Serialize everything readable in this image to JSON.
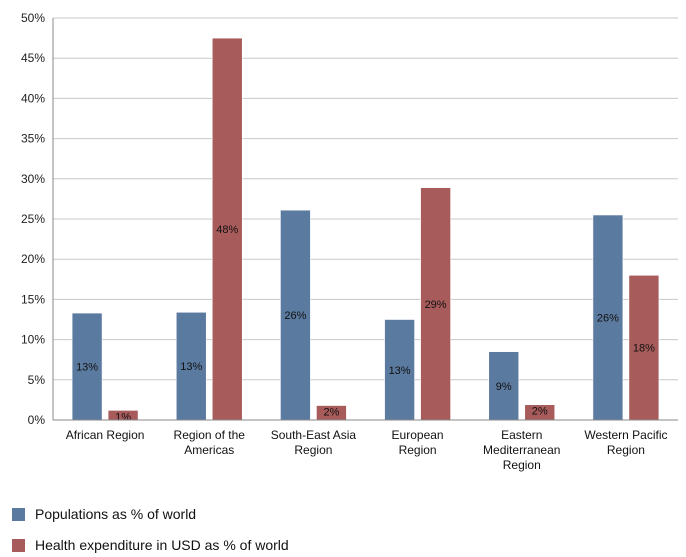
{
  "chart_data": {
    "type": "bar",
    "categories": [
      [
        "African Region"
      ],
      [
        "Region of the",
        "Americas"
      ],
      [
        "South-East Asia",
        "Region"
      ],
      [
        "European",
        "Region"
      ],
      [
        "Eastern",
        "Mediterranean",
        "Region"
      ],
      [
        "Western Pacific",
        "Region"
      ]
    ],
    "series": [
      {
        "name": "Populations as % of world",
        "color": "#5b7aa0",
        "values": [
          13.3,
          13.4,
          26.1,
          12.5,
          8.5,
          25.5
        ],
        "labels": [
          "13%",
          "13%",
          "26%",
          "13%",
          "9%",
          "26%"
        ]
      },
      {
        "name": "Health expenditure in USD as % of world",
        "color": "#a85b5b",
        "values": [
          1.2,
          47.5,
          1.8,
          28.9,
          1.9,
          18.0
        ],
        "labels": [
          "1%",
          "48%",
          "2%",
          "29%",
          "2%",
          "18%"
        ]
      }
    ],
    "ylim": [
      0,
      50
    ],
    "yticks": [
      0,
      5,
      10,
      15,
      20,
      25,
      30,
      35,
      40,
      45,
      50
    ],
    "ytick_suffix": "%",
    "grid": true,
    "legend": "bottom-left",
    "title": "",
    "xlabel": "",
    "ylabel": ""
  }
}
